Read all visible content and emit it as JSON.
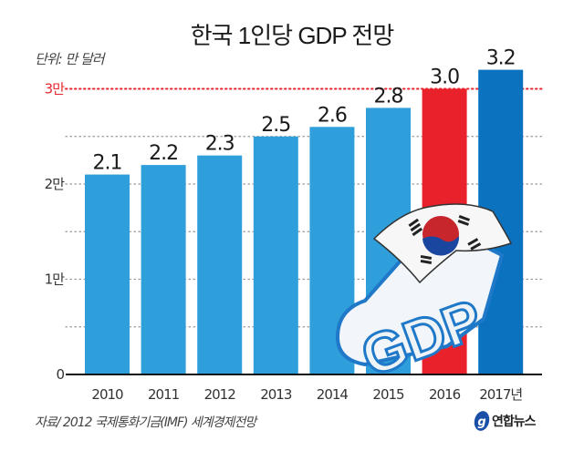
{
  "chart_data": {
    "type": "bar",
    "title": "한국 1인당 GDP 전망",
    "unit_label": "단위: 만 달러",
    "categories": [
      "2010",
      "2011",
      "2012",
      "2013",
      "2014",
      "2015",
      "2016",
      "2017년"
    ],
    "values": [
      2.1,
      2.2,
      2.3,
      2.5,
      2.6,
      2.8,
      3.0,
      3.2
    ],
    "value_labels": [
      "2.1",
      "2.2",
      "2.3",
      "2.5",
      "2.6",
      "2.8",
      "3.0",
      "3.2"
    ],
    "bar_colors": [
      "#2f9fdc",
      "#2f9fdc",
      "#2f9fdc",
      "#2f9fdc",
      "#2f9fdc",
      "#2f9fdc",
      "#e8212b",
      "#0b72c0"
    ],
    "ylim": [
      0,
      3.2
    ],
    "yticks": [
      {
        "value": 0,
        "label": "0"
      },
      {
        "value": 1,
        "label": "1만"
      },
      {
        "value": 2,
        "label": "2만"
      },
      {
        "value": 3,
        "label": "3만",
        "highlight": true
      }
    ],
    "gridlines": [
      0.5,
      1,
      1.5,
      2,
      2.5,
      3
    ],
    "highlight_line": {
      "value": 3,
      "color": "#e8262d"
    },
    "grid_color": "#999999",
    "xlabel": "",
    "ylabel": "",
    "grid": true,
    "legend": "none",
    "illustration": "korean-flag-gdp-block-letters",
    "illustration_text": "GDP"
  },
  "footer": {
    "source": "자료/ 2012 국제통화기금(IMF) 세계경제전망",
    "brand": "연합뉴스",
    "brand_icon": "yonhap-logo-icon"
  }
}
